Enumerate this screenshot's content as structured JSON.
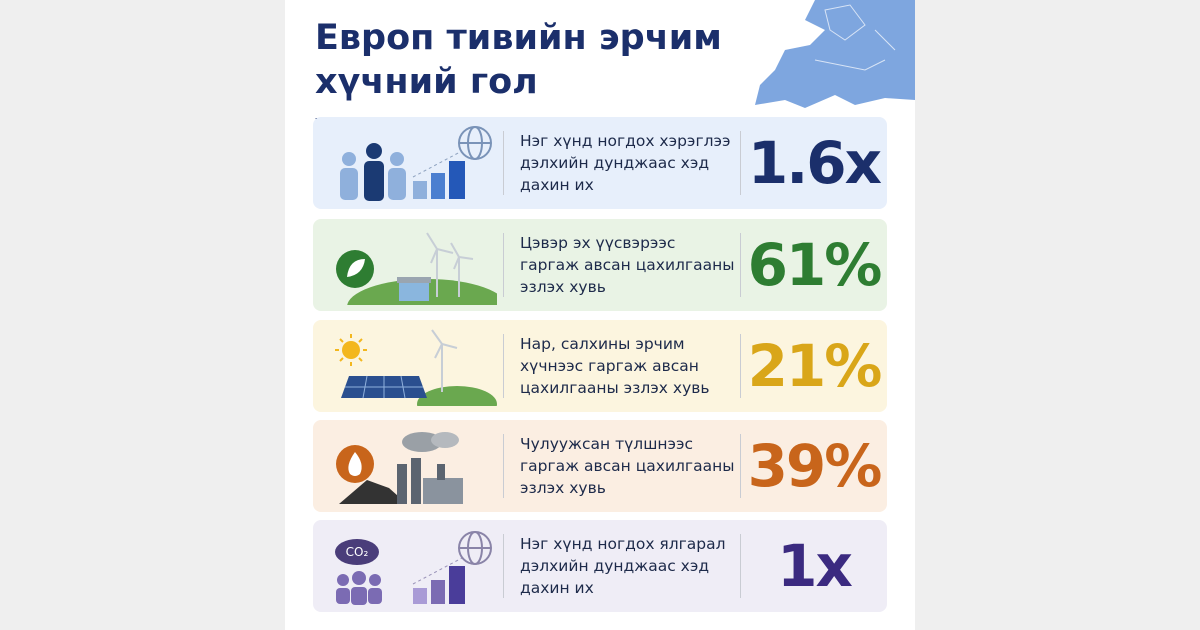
{
  "header": {
    "title": "Европ тивийн эрчим хүчний гол үзүүлэлтүүд:"
  },
  "cards": [
    {
      "label": "Нэг хүнд ногдох хэрэглээ дэлхийн дунджаас хэд дахин их",
      "value": "1.6x"
    },
    {
      "label": "Цэвэр эх үүсвэрээс гаргаж авсан цахилгааны эзлэх хувь",
      "value": "61%"
    },
    {
      "label": "Нар, салхины эрчим хүчнээс гаргаж авсан цахилгааны эзлэх хувь",
      "value": "21%"
    },
    {
      "label": "Чулуужсан түлшнээс гаргаж авсан цахилгааны эзлэх хувь",
      "value": "39%"
    },
    {
      "label": "Нэг хүнд ногдох ялгарал дэлхийн дунджаас хэд дахин их",
      "value": "1x"
    }
  ]
}
